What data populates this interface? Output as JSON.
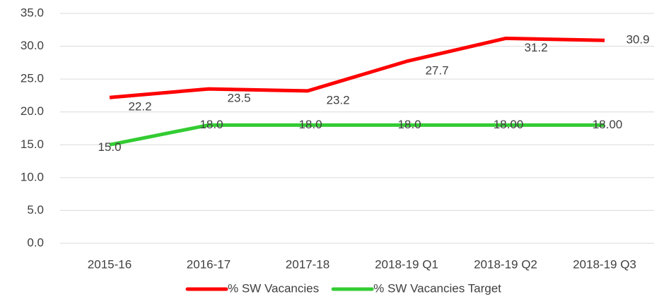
{
  "chart_data": {
    "type": "line",
    "categories": [
      "2015-16",
      "2016-17",
      "2017-18",
      "2018-19 Q1",
      "2018-19 Q2",
      "2018-19 Q3"
    ],
    "series": [
      {
        "name": "% SW Vacancies",
        "color": "#ff0000",
        "values": [
          22.2,
          23.5,
          23.2,
          27.7,
          31.2,
          30.9
        ]
      },
      {
        "name": "% SW Vacancies Target",
        "color": "#33cc33",
        "values": [
          15,
          18,
          18,
          18,
          18,
          18
        ],
        "value_labels": [
          "15.0",
          "18.0",
          "18.0",
          "18.0",
          "18.00",
          "18.00"
        ]
      }
    ],
    "ylim": [
      0,
      35
    ],
    "yticks": [
      {
        "value": 0,
        "label": "0.0"
      },
      {
        "value": 5,
        "label": "5.0"
      },
      {
        "value": 10,
        "label": "10.0"
      },
      {
        "value": 15,
        "label": "15.0"
      },
      {
        "value": 20,
        "label": "20.0"
      },
      {
        "value": 25,
        "label": "25.0"
      },
      {
        "value": 30,
        "label": "30.0"
      },
      {
        "value": 35,
        "label": "35.0"
      }
    ],
    "grid": true,
    "legend": "bottom"
  }
}
